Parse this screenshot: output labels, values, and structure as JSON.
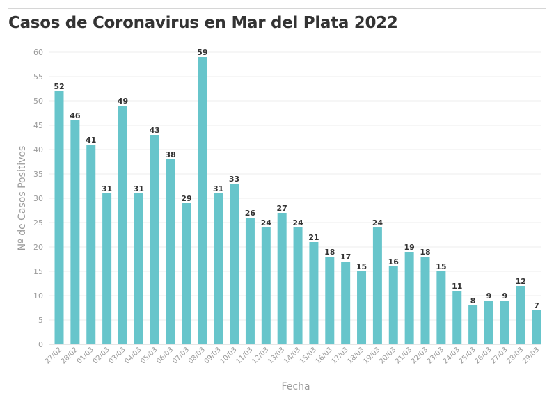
{
  "title": "Casos de Coronavirus en Mar del Plata 2022",
  "chart_data": {
    "type": "bar",
    "title": "Casos de Coronavirus en Mar del Plata 2022",
    "xlabel": "Fecha",
    "ylabel": "Nº de Casos Positivos",
    "ylim": [
      0,
      60
    ],
    "ytick_step": 5,
    "grid": true,
    "bar_color": "#67c5cb",
    "categories": [
      "27/02",
      "28/02",
      "01/03",
      "02/03",
      "03/03",
      "04/03",
      "05/03",
      "06/03",
      "07/03",
      "08/03",
      "09/03",
      "10/03",
      "11/03",
      "12/03",
      "13/03",
      "14/03",
      "15/03",
      "16/03",
      "17/03",
      "18/03",
      "19/03",
      "20/03",
      "21/03",
      "22/03",
      "23/03",
      "24/03",
      "25/03",
      "26/03",
      "27/03",
      "28/03",
      "29/03"
    ],
    "values": [
      52,
      46,
      41,
      31,
      49,
      31,
      43,
      38,
      29,
      59,
      31,
      33,
      26,
      24,
      27,
      24,
      21,
      18,
      17,
      15,
      24,
      16,
      19,
      18,
      15,
      11,
      8,
      9,
      9,
      12,
      7
    ]
  }
}
